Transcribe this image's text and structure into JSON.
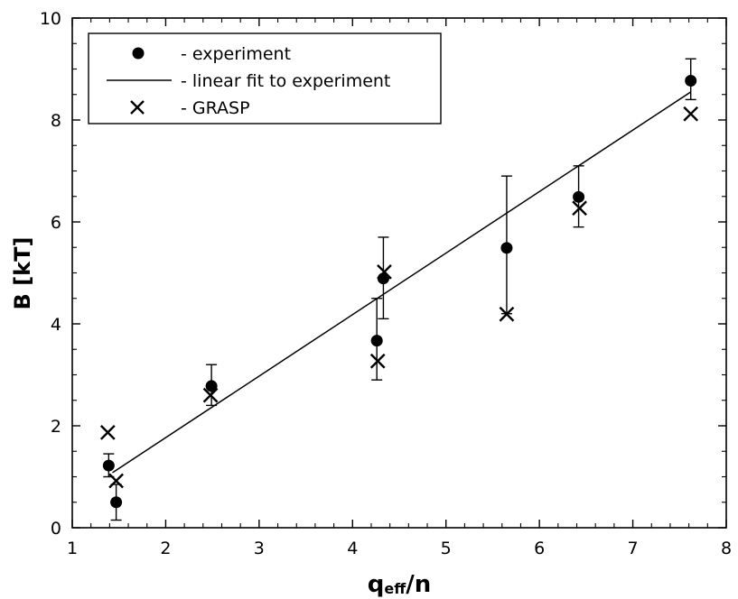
{
  "chart_data": {
    "type": "scatter",
    "xlabel": {
      "main": "q",
      "sub": "eff",
      "rest": "/n"
    },
    "ylabel": "B [kT]",
    "xlim": [
      1,
      8
    ],
    "ylim": [
      0,
      10
    ],
    "x_ticks": [
      1,
      2,
      3,
      4,
      5,
      6,
      7,
      8
    ],
    "y_ticks": [
      0,
      2,
      4,
      6,
      8,
      10
    ],
    "grid": false,
    "legend_position": "top-left",
    "series": [
      {
        "name": "- experiment",
        "marker": "filled-circle",
        "points": [
          {
            "x": 1.39,
            "y": 1.22,
            "err_low": 0.22,
            "err_high": 0.23
          },
          {
            "x": 1.47,
            "y": 0.5,
            "err_low": 0.35,
            "err_high": 0.35
          },
          {
            "x": 2.49,
            "y": 2.78,
            "err_low": 0.38,
            "err_high": 0.42
          },
          {
            "x": 4.26,
            "y": 3.67,
            "err_low": 0.77,
            "err_high": 0.83
          },
          {
            "x": 4.33,
            "y": 4.89,
            "err_low": 0.79,
            "err_high": 0.81
          },
          {
            "x": 5.65,
            "y": 5.49,
            "err_low": 1.29,
            "err_high": 1.41
          },
          {
            "x": 6.42,
            "y": 6.49,
            "err_low": 0.59,
            "err_high": 0.61
          },
          {
            "x": 7.62,
            "y": 8.77,
            "err_low": 0.37,
            "err_high": 0.43
          }
        ]
      },
      {
        "name": "- linear fit to experiment",
        "type": "line",
        "x": [
          1.43,
          7.62
        ],
        "y": [
          1.08,
          8.55
        ]
      },
      {
        "name": "- GRASP",
        "marker": "x-cross",
        "points": [
          {
            "x": 1.38,
            "y": 1.87
          },
          {
            "x": 1.47,
            "y": 0.92
          },
          {
            "x": 2.48,
            "y": 2.6
          },
          {
            "x": 4.27,
            "y": 3.27
          },
          {
            "x": 4.34,
            "y": 5.02
          },
          {
            "x": 5.65,
            "y": 4.19
          },
          {
            "x": 6.43,
            "y": 6.27
          },
          {
            "x": 7.62,
            "y": 8.12
          }
        ]
      }
    ]
  }
}
